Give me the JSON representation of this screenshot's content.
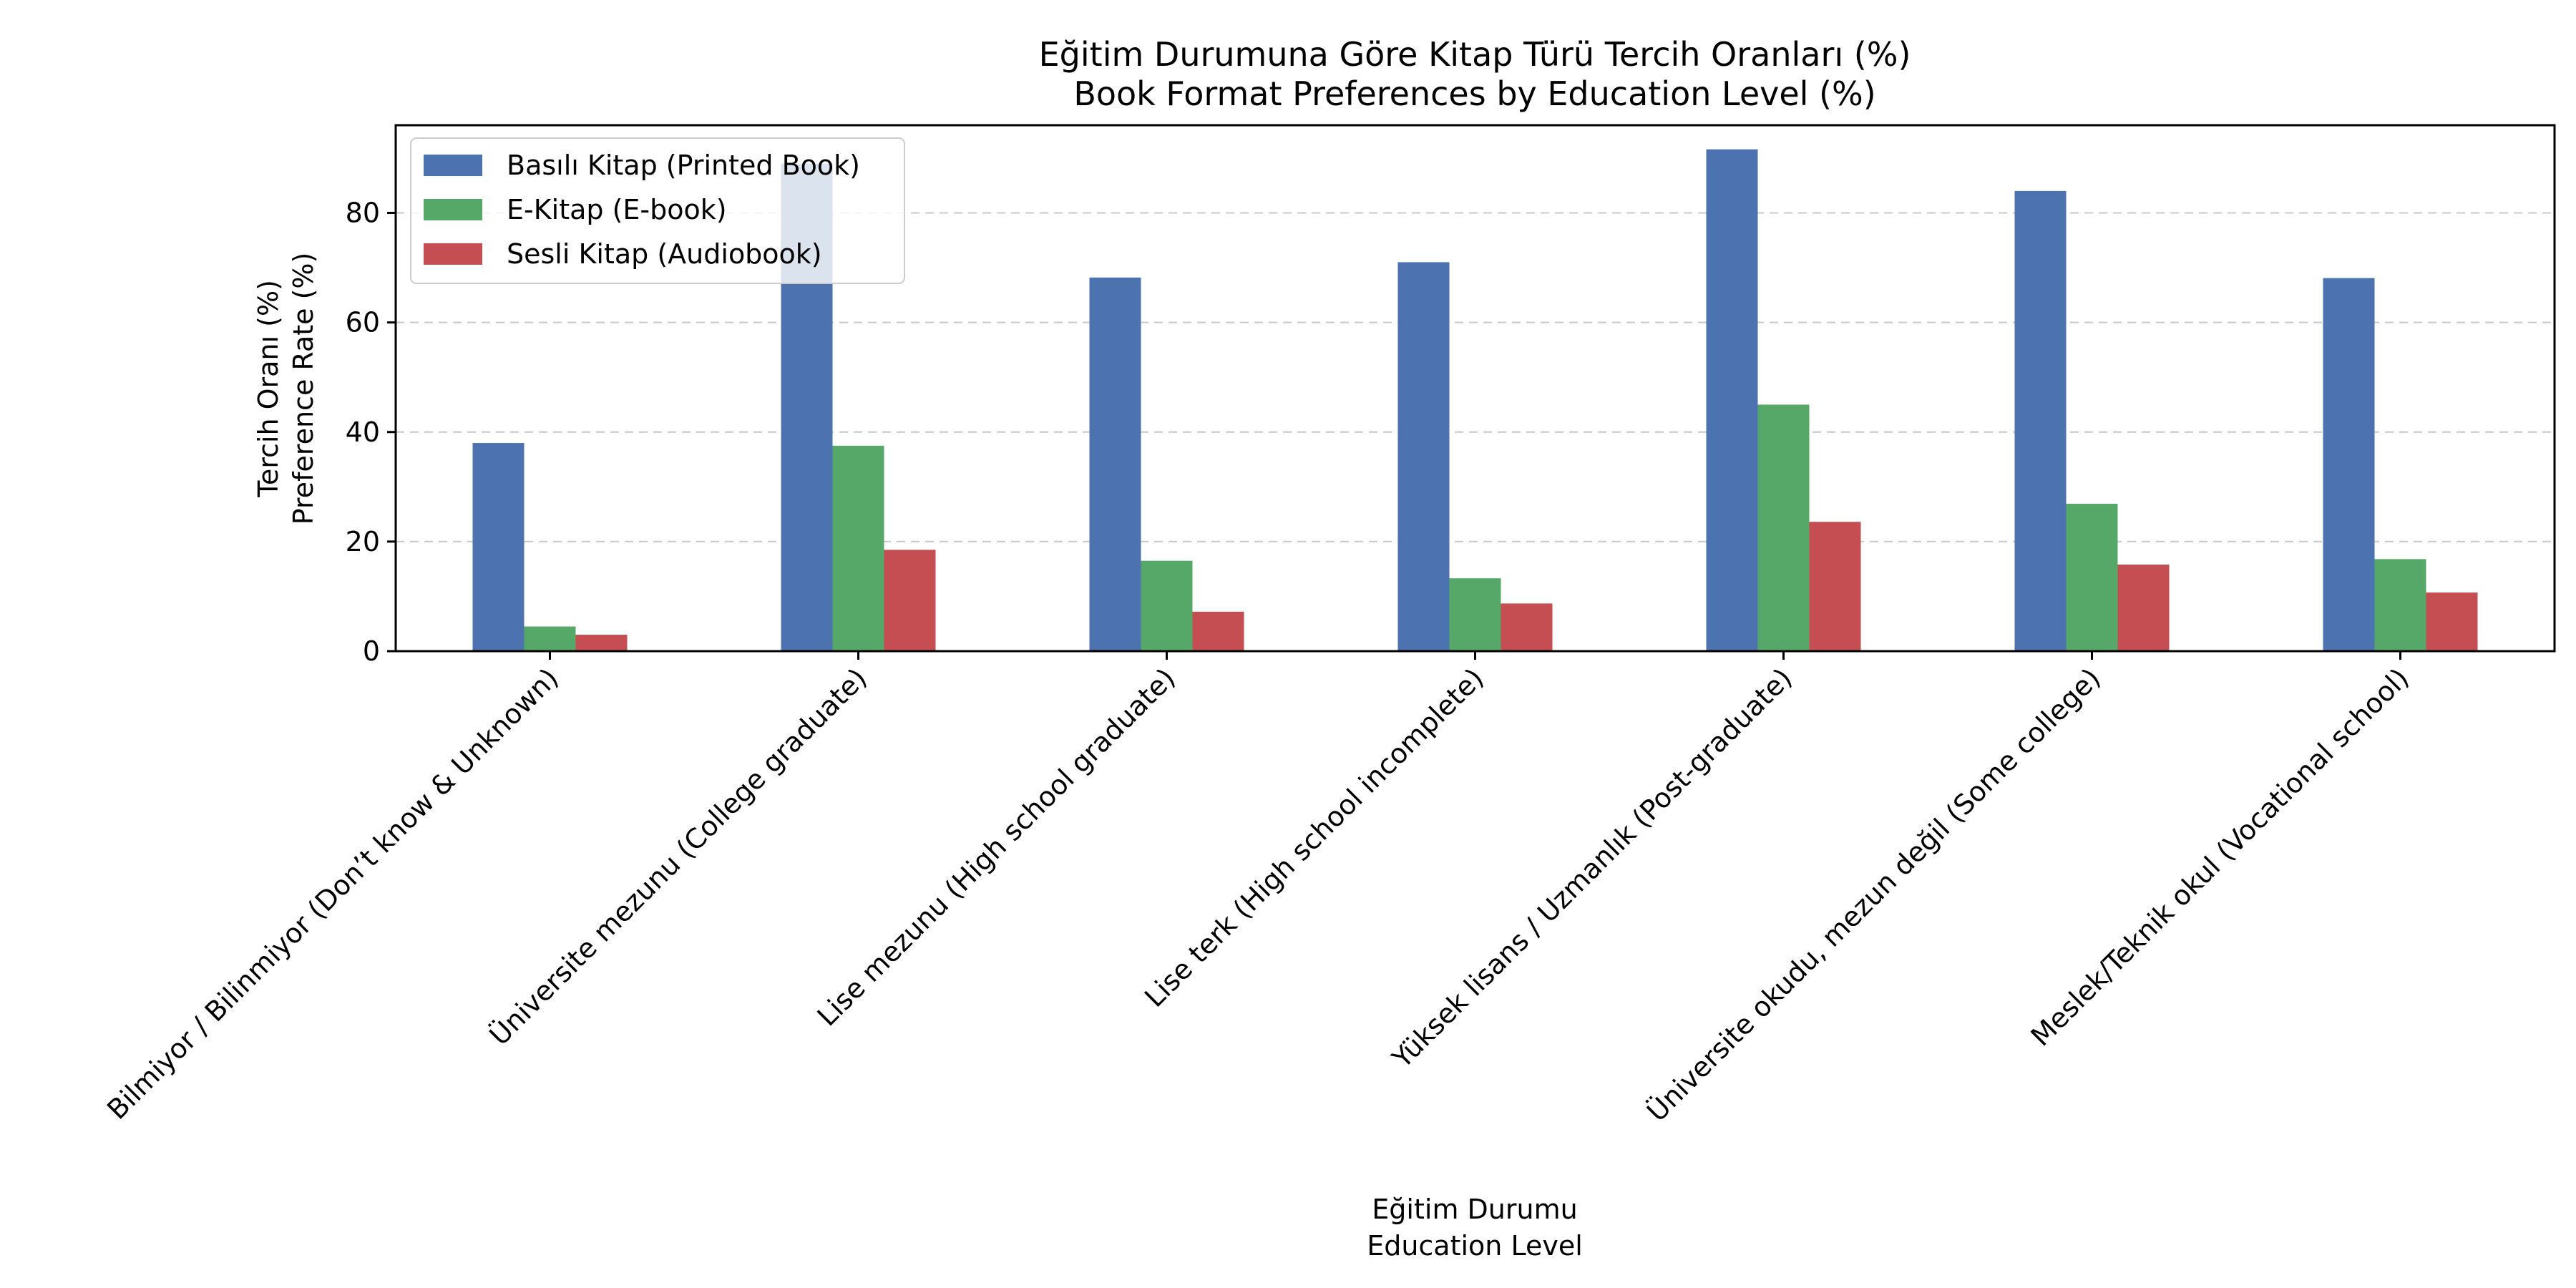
{
  "chart_data": {
    "type": "bar",
    "title": "Eğitim Durumuna Göre Kitap Türü Tercih Oranları (%)",
    "subtitle": "Book Format Preferences by Education Level (%)",
    "xlabel": "Eğitim Durumu",
    "xlabel_sub": "Education Level",
    "ylabel": "Tercih Oranı (%)",
    "ylabel_sub": "Preference Rate (%)",
    "ylim": [
      0,
      96
    ],
    "yticks": [
      0,
      20,
      40,
      60,
      80
    ],
    "grid": "y-dashed",
    "legend_position": "top-left",
    "categories": [
      "Bilmiyor / Bilinmiyor (Don’t know & Unknown)",
      "Üniversite mezunu (College graduate)",
      "Lise mezunu (High school graduate)",
      "Lise terk (High school incomplete)",
      "Yüksek lisans / Uzmanlık (Post-graduate)",
      "Üniversite okudu, mezun değil (Some college)",
      "Meslek/Teknik okul (Vocational school)"
    ],
    "series": [
      {
        "name": "Basılı Kitap (Printed Book)",
        "color": "#4c72b0",
        "values": [
          38,
          89,
          68.2,
          71,
          91.6,
          84,
          68.1
        ]
      },
      {
        "name": "E-Kitap (E-book)",
        "color": "#55a868",
        "values": [
          4.5,
          37.5,
          16.5,
          13.3,
          45,
          26.9,
          16.8
        ]
      },
      {
        "name": "Sesli Kitap (Audiobook)",
        "color": "#c44e52",
        "values": [
          3,
          18.5,
          7.2,
          8.7,
          23.6,
          15.8,
          10.7
        ]
      }
    ]
  }
}
